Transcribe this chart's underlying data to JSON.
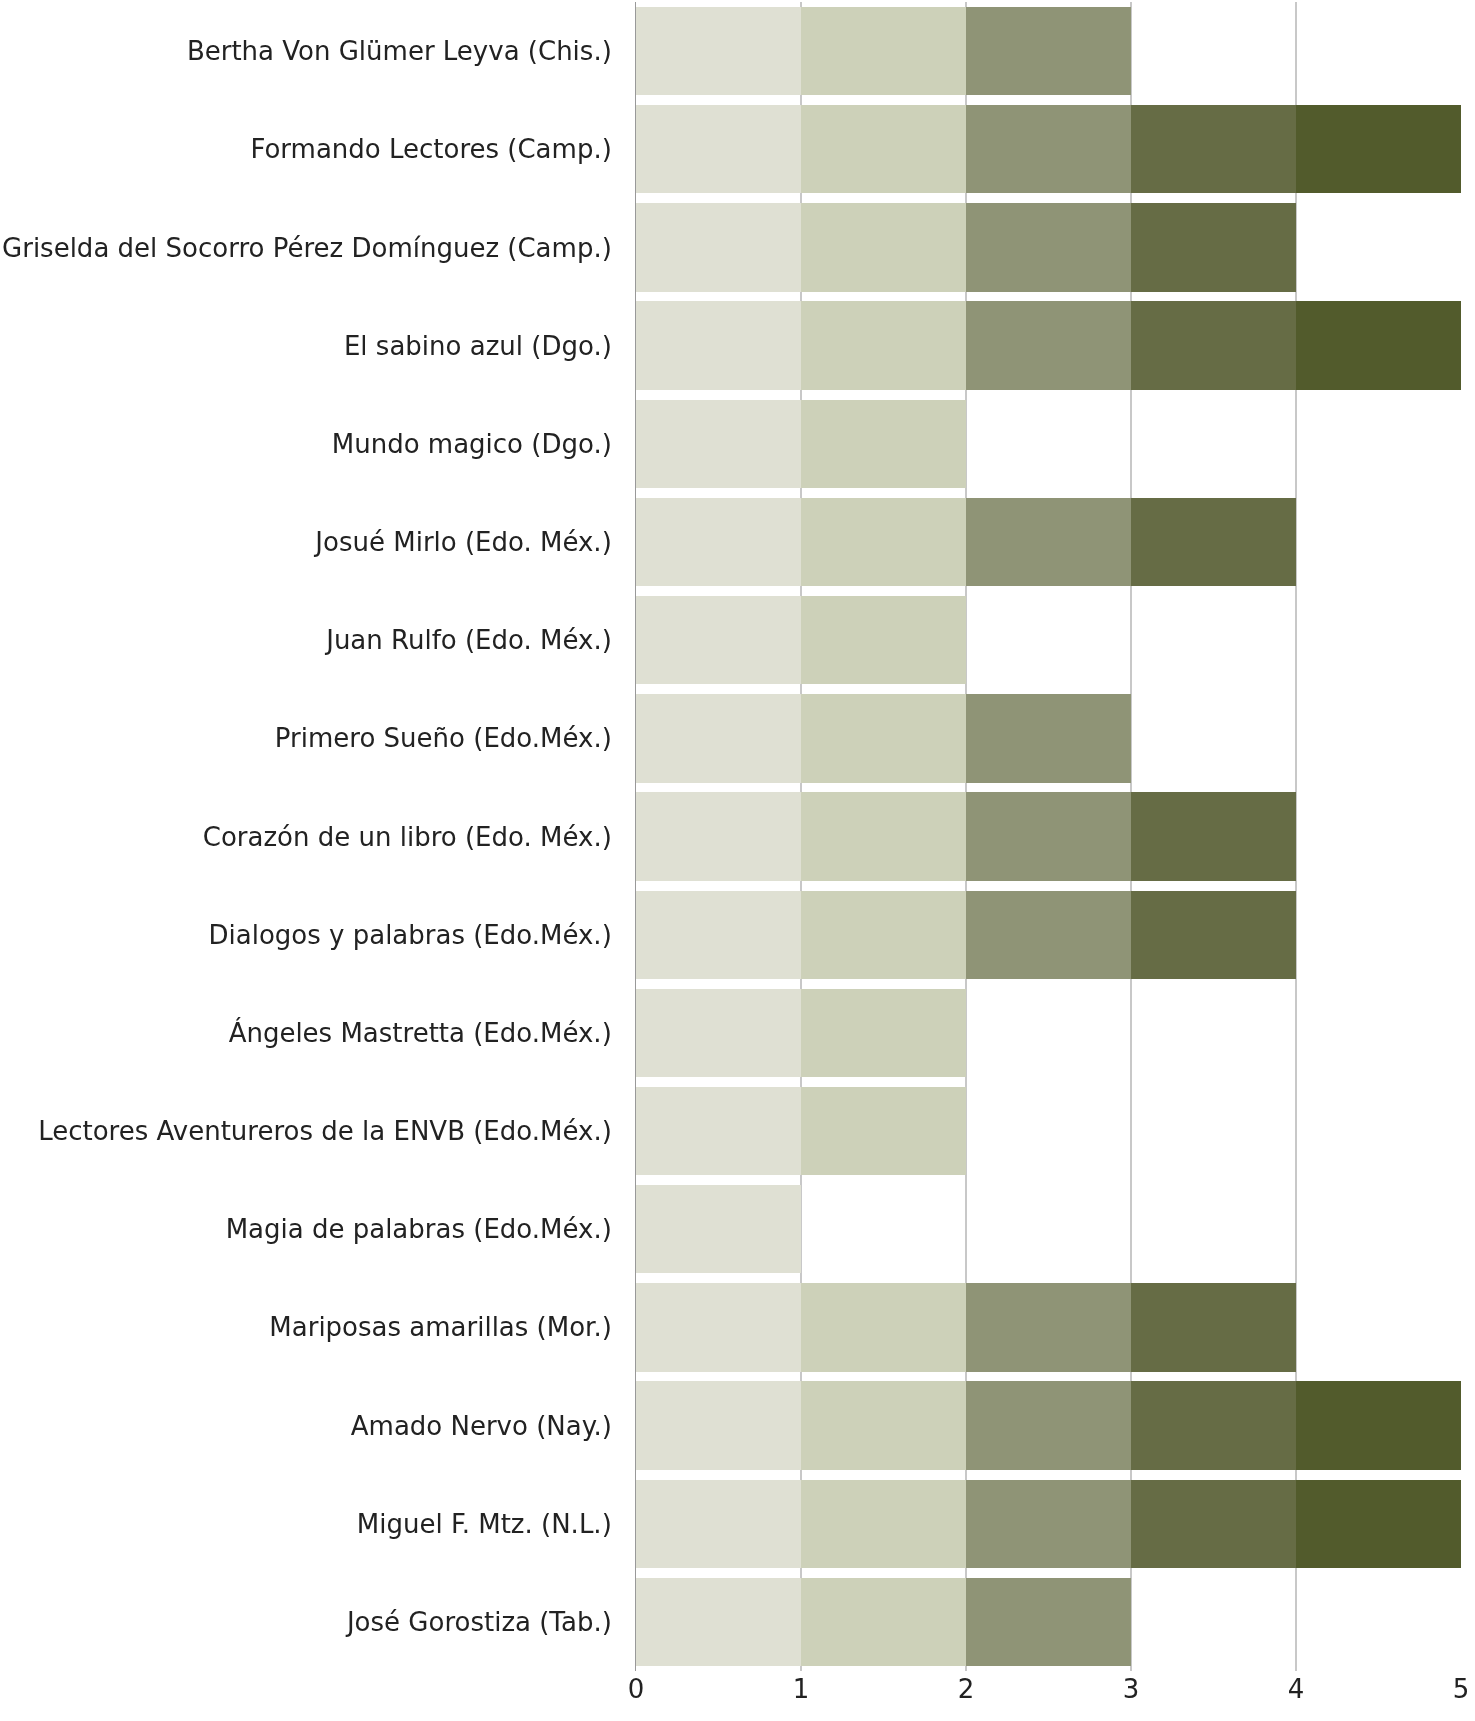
{
  "chart_data": {
    "type": "bar",
    "orientation": "horizontal",
    "stacked": true,
    "grid": "x",
    "categories": [
      "Bertha Von Glümer Leyva (Chis.)",
      "Formando Lectores (Camp.)",
      "Griselda del Socorro Pérez Domínguez (Camp.)",
      "El sabino azul (Dgo.)",
      "Mundo magico (Dgo.)",
      "Josué Mirlo (Edo. Méx.)",
      "Juan Rulfo (Edo. Méx.)",
      "Primero Sueño (Edo.Méx.)",
      "Corazón de un libro (Edo. Méx.)",
      "Dialogos y palabras (Edo.Méx.)",
      "Ángeles Mastretta (Edo.Méx.)",
      "Lectores Aventureros de la ENVB (Edo.Méx.)",
      "Magia de palabras (Edo.Méx.)",
      "Mariposas amarillas (Mor.)",
      "Amado Nervo (Nay.)",
      "Miguel F. Mtz. (N.L.)",
      "José Gorostiza (Tab.)"
    ],
    "series": [
      {
        "color": "#dfe0d3",
        "values": [
          1,
          1,
          1,
          1,
          1,
          1,
          1,
          1,
          1,
          1,
          1,
          1,
          1,
          1,
          1,
          1,
          1
        ]
      },
      {
        "color": "#cdd1b9",
        "values": [
          1,
          1,
          1,
          1,
          1,
          1,
          1,
          1,
          1,
          1,
          1,
          1,
          null,
          1,
          1,
          1,
          1
        ]
      },
      {
        "color": "#8f9476",
        "values": [
          1,
          1,
          1,
          1,
          null,
          1,
          null,
          1,
          1,
          1,
          null,
          null,
          null,
          1,
          1,
          1,
          1
        ]
      },
      {
        "color": "#666c45",
        "values": [
          null,
          1,
          1,
          1,
          null,
          1,
          null,
          null,
          1,
          1,
          null,
          null,
          null,
          1,
          1,
          1,
          null
        ]
      },
      {
        "color": "#525b2c",
        "values": [
          null,
          1,
          null,
          1,
          null,
          null,
          null,
          null,
          null,
          null,
          null,
          null,
          null,
          null,
          1,
          1,
          null
        ]
      }
    ],
    "xlim": [
      0,
      5
    ],
    "xticks": [
      0,
      1,
      2,
      3,
      4,
      5
    ]
  }
}
